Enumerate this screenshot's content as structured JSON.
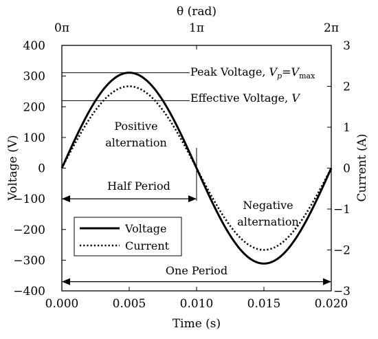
{
  "chart_data": {
    "type": "line",
    "x_axis": {
      "label": "Time (s)",
      "range": [
        0,
        0.02
      ],
      "ticks": [
        0,
        0.005,
        0.01,
        0.015,
        0.02
      ],
      "tick_labels": [
        "0.000",
        "0.005",
        "0.010",
        "0.015",
        "0.020"
      ]
    },
    "x2_axis": {
      "label": "θ (rad)",
      "position": "top",
      "tick_labels": [
        "0π",
        "1π",
        "2π"
      ]
    },
    "y_axis": {
      "label": "Voltage (V)",
      "range": [
        -400,
        400
      ],
      "ticks": [
        400,
        300,
        200,
        100,
        0,
        -100,
        -200,
        -300,
        -400
      ],
      "tick_labels": [
        "400",
        "300",
        "200",
        "100",
        "0",
        "−100",
        "−200",
        "−300",
        "−400"
      ]
    },
    "y2_axis": {
      "label": "Current (A)",
      "position": "right",
      "range": [
        -3,
        3
      ],
      "ticks": [
        3,
        2,
        1,
        0,
        -1,
        -2,
        -3
      ],
      "tick_labels": [
        "3",
        "2",
        "1",
        "0",
        "−1",
        "−2",
        "−3"
      ]
    },
    "series": [
      {
        "name": "Voltage",
        "axis": "left",
        "style": "solid",
        "color": "#000000",
        "function": "sine",
        "amplitude": 311,
        "frequency_hz": 50,
        "x_start": 0,
        "x_end": 0.02
      },
      {
        "name": "Current",
        "axis": "right",
        "style": "dotted",
        "color": "#000000",
        "function": "sine",
        "amplitude": 2,
        "frequency_hz": 50,
        "x_start": 0,
        "x_end": 0.02
      }
    ],
    "annotations": {
      "peak_voltage": {
        "text": "Peak Voltage, ",
        "symbol": "V",
        "subscript": "p",
        "equals": "=",
        "symbol2": "V",
        "subscript2": "max",
        "value": 311
      },
      "effective_voltage": {
        "text": "Effective Voltage, ",
        "symbol": "V",
        "value": 220
      },
      "positive_alternation": [
        "Positive",
        "alternation"
      ],
      "negative_alternation": [
        "Negative",
        "alternation"
      ],
      "half_period": {
        "text": "Half Period",
        "x_from": 0,
        "x_to": 0.01,
        "y": -100
      },
      "one_period": {
        "text": "One Period",
        "x_from": 0,
        "x_to": 0.02,
        "y": -370
      }
    },
    "legend": {
      "placement": "lower-left",
      "entries": [
        {
          "label": "Voltage",
          "style": "solid"
        },
        {
          "label": "Current",
          "style": "dotted"
        }
      ]
    },
    "grid": false
  }
}
